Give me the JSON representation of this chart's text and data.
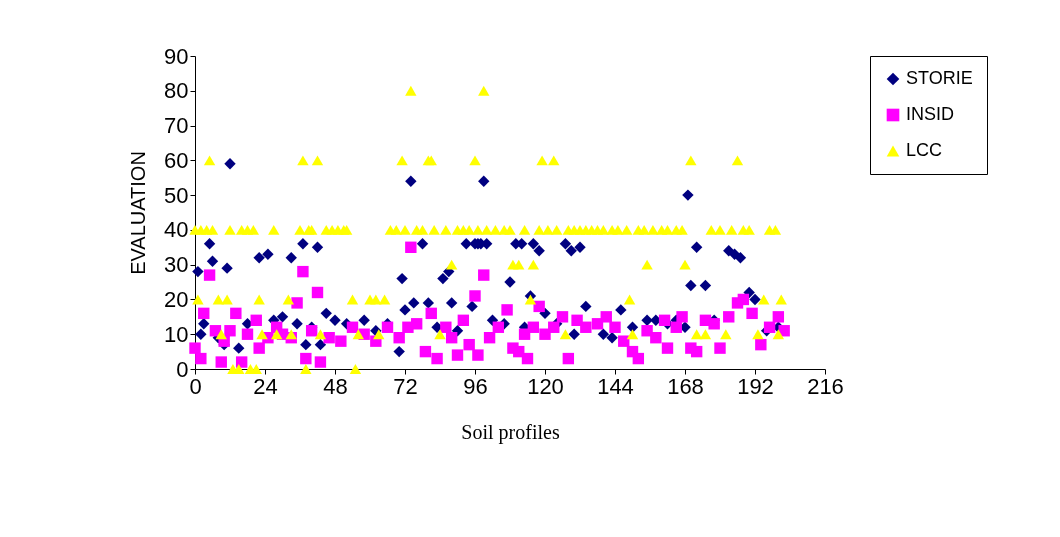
{
  "chart_data": {
    "type": "scatter",
    "xlabel": "Soil profiles",
    "ylabel": "EVALUATION",
    "xlim": [
      0,
      216
    ],
    "xticks": [
      0,
      24,
      48,
      72,
      96,
      120,
      144,
      168,
      192,
      216
    ],
    "ylim": [
      0,
      90
    ],
    "yticks": [
      0,
      10,
      20,
      30,
      40,
      50,
      60,
      70,
      80,
      90
    ],
    "grid": false,
    "legend": "right",
    "series": [
      {
        "name": "STORIE",
        "color": "#000080",
        "marker": "diamond",
        "x": [
          1,
          2,
          3,
          5,
          6,
          8,
          10,
          11,
          12,
          15,
          18,
          22,
          25,
          27,
          30,
          33,
          35,
          37,
          38,
          40,
          42,
          43,
          45,
          48,
          52,
          58,
          62,
          66,
          70,
          71,
          72,
          74,
          75,
          78,
          80,
          83,
          85,
          87,
          88,
          90,
          93,
          95,
          96,
          97,
          98,
          99,
          100,
          102,
          106,
          108,
          110,
          112,
          113,
          115,
          116,
          118,
          120,
          124,
          127,
          129,
          130,
          132,
          134,
          140,
          143,
          146,
          150,
          155,
          158,
          162,
          165,
          168,
          169,
          170,
          172,
          175,
          178,
          183,
          185,
          187,
          190,
          192,
          196,
          200
        ],
        "values": [
          28,
          10,
          13,
          36,
          31,
          9,
          7,
          29,
          59,
          6,
          13,
          32,
          33,
          14,
          15,
          32,
          13,
          36,
          7,
          12,
          35,
          7,
          16,
          14,
          13,
          14,
          11,
          13,
          5,
          26,
          17,
          54,
          19,
          36,
          19,
          12,
          26,
          28,
          19,
          11,
          36,
          18,
          36,
          36,
          36,
          54,
          36,
          14,
          13,
          25,
          36,
          36,
          12,
          21,
          36,
          34,
          16,
          13,
          36,
          34,
          10,
          35,
          18,
          10,
          9,
          17,
          12,
          14,
          14,
          13,
          14,
          12,
          50,
          24,
          35,
          24,
          14,
          34,
          33,
          32,
          22,
          20,
          11,
          12
        ]
      },
      {
        "name": "INSID",
        "color": "#ff00ff",
        "marker": "square",
        "x": [
          0,
          2,
          3,
          5,
          7,
          9,
          10,
          12,
          14,
          16,
          18,
          21,
          22,
          25,
          28,
          30,
          33,
          35,
          37,
          38,
          40,
          42,
          43,
          46,
          50,
          54,
          58,
          62,
          66,
          70,
          73,
          74,
          76,
          79,
          81,
          83,
          86,
          88,
          90,
          92,
          94,
          96,
          97,
          99,
          101,
          104,
          107,
          109,
          111,
          113,
          114,
          116,
          118,
          120,
          123,
          126,
          128,
          131,
          134,
          138,
          141,
          144,
          147,
          150,
          152,
          155,
          158,
          161,
          162,
          165,
          167,
          170,
          172,
          175,
          178,
          180,
          183,
          186,
          188,
          191,
          194,
          197,
          200,
          202
        ],
        "values": [
          6,
          3,
          16,
          27,
          11,
          2,
          8,
          11,
          16,
          2,
          10,
          14,
          6,
          9,
          12,
          10,
          9,
          19,
          28,
          3,
          11,
          22,
          2,
          9,
          8,
          12,
          10,
          8,
          12,
          9,
          12,
          35,
          13,
          5,
          16,
          3,
          12,
          9,
          4,
          14,
          7,
          21,
          4,
          27,
          9,
          12,
          17,
          6,
          5,
          10,
          3,
          12,
          18,
          10,
          12,
          15,
          3,
          14,
          12,
          13,
          15,
          12,
          8,
          5,
          3,
          11,
          9,
          14,
          6,
          12,
          15,
          6,
          5,
          14,
          13,
          6,
          15,
          19,
          20,
          16,
          7,
          12,
          15,
          11
        ]
      },
      {
        "name": "LCC",
        "color": "#ffff00",
        "marker": "triangle",
        "x": [
          0,
          1,
          2,
          4,
          5,
          6,
          8,
          9,
          11,
          12,
          13,
          15,
          16,
          18,
          19,
          20,
          21,
          22,
          23,
          27,
          28,
          32,
          33,
          36,
          37,
          38,
          39,
          40,
          42,
          43,
          45,
          47,
          49,
          51,
          52,
          54,
          55,
          56,
          60,
          62,
          63,
          65,
          67,
          69,
          71,
          72,
          74,
          76,
          78,
          80,
          81,
          82,
          84,
          86,
          88,
          90,
          92,
          94,
          96,
          97,
          99,
          100,
          103,
          106,
          108,
          109,
          111,
          113,
          115,
          116,
          118,
          119,
          121,
          123,
          124,
          127,
          128,
          130,
          132,
          134,
          136,
          138,
          140,
          143,
          145,
          148,
          149,
          150,
          152,
          154,
          155,
          157,
          160,
          162,
          165,
          167,
          168,
          170,
          172,
          175,
          177,
          180,
          182,
          184,
          186,
          188,
          190,
          193,
          195,
          197,
          199,
          200,
          201
        ],
        "values": [
          40,
          20,
          40,
          40,
          60,
          40,
          20,
          10,
          20,
          40,
          0,
          0,
          40,
          40,
          0,
          40,
          0,
          20,
          10,
          40,
          10,
          20,
          10,
          40,
          60,
          0,
          40,
          40,
          60,
          10,
          40,
          40,
          40,
          40,
          40,
          20,
          0,
          10,
          20,
          20,
          10,
          20,
          40,
          40,
          60,
          40,
          80,
          40,
          40,
          60,
          60,
          40,
          10,
          40,
          30,
          40,
          40,
          40,
          60,
          40,
          80,
          40,
          40,
          40,
          40,
          30,
          30,
          40,
          20,
          30,
          40,
          60,
          40,
          60,
          40,
          10,
          40,
          40,
          40,
          40,
          40,
          40,
          40,
          40,
          40,
          40,
          20,
          10,
          40,
          40,
          30,
          40,
          40,
          40,
          40,
          40,
          30,
          60,
          10,
          10,
          40,
          40,
          10,
          40,
          60,
          40,
          40,
          10,
          20,
          40,
          40,
          10,
          20
        ]
      }
    ]
  }
}
